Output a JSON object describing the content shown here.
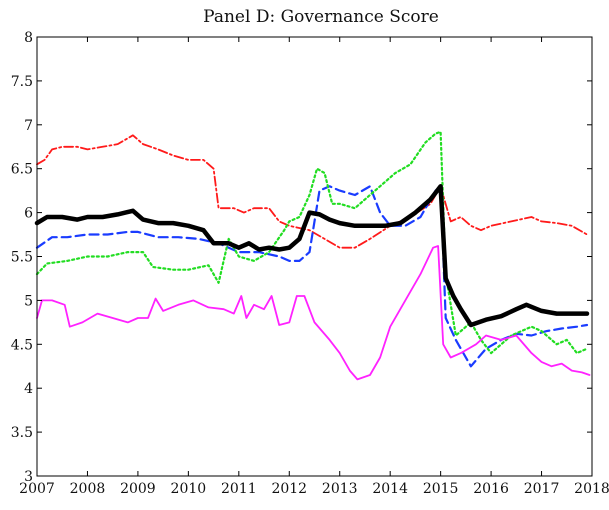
{
  "chart_data": {
    "type": "line",
    "title": "Panel D: Governance Score",
    "xlabel": "",
    "ylabel": "",
    "xlim": [
      2007,
      2018
    ],
    "ylim": [
      3,
      8
    ],
    "x_ticks": [
      "2007",
      "2008",
      "2009",
      "2010",
      "2011",
      "2012",
      "2013",
      "2014",
      "2015",
      "2016",
      "2017",
      "2018"
    ],
    "y_ticks": [
      "3",
      "3.5",
      "4",
      "4.5",
      "5",
      "5.5",
      "6",
      "6.5",
      "7",
      "7.5",
      "8"
    ],
    "grid": false,
    "legend": "none",
    "series": [
      {
        "color": "#ff1a1a",
        "style": "dashdot",
        "x": [
          2007.0,
          2007.15,
          2007.3,
          2007.5,
          2007.8,
          2008.0,
          2008.3,
          2008.6,
          2008.9,
          2009.1,
          2009.4,
          2009.7,
          2010.0,
          2010.3,
          2010.5,
          2010.6,
          2010.9,
          2011.1,
          2011.3,
          2011.6,
          2011.8,
          2012.0,
          2012.4,
          2012.7,
          2013.0,
          2013.3,
          2013.6,
          2014.0,
          2014.4,
          2014.8,
          2015.0,
          2015.2,
          2015.4,
          2015.6,
          2015.8,
          2016.0,
          2016.4,
          2016.8,
          2017.0,
          2017.3,
          2017.6,
          2017.9
        ],
        "y": [
          6.55,
          6.6,
          6.72,
          6.75,
          6.75,
          6.72,
          6.75,
          6.78,
          6.88,
          6.78,
          6.72,
          6.65,
          6.6,
          6.6,
          6.5,
          6.05,
          6.05,
          6.0,
          6.05,
          6.05,
          5.9,
          5.85,
          5.8,
          5.7,
          5.6,
          5.6,
          5.7,
          5.85,
          5.95,
          6.1,
          6.3,
          5.9,
          5.95,
          5.85,
          5.8,
          5.85,
          5.9,
          5.95,
          5.9,
          5.88,
          5.85,
          5.75
        ]
      },
      {
        "color": "#1a3cff",
        "style": "dashed",
        "x": [
          2007.0,
          2007.3,
          2007.6,
          2008.0,
          2008.4,
          2008.8,
          2009.0,
          2009.4,
          2009.8,
          2010.2,
          2010.6,
          2011.0,
          2011.4,
          2011.8,
          2012.0,
          2012.2,
          2012.4,
          2012.6,
          2012.8,
          2013.0,
          2013.3,
          2013.6,
          2013.8,
          2014.0,
          2014.3,
          2014.6,
          2014.9,
          2015.0,
          2015.1,
          2015.3,
          2015.6,
          2015.9,
          2016.2,
          2016.5,
          2016.8,
          2017.1,
          2017.4,
          2017.7,
          2017.9
        ],
        "y": [
          5.6,
          5.72,
          5.72,
          5.75,
          5.75,
          5.78,
          5.78,
          5.72,
          5.72,
          5.7,
          5.65,
          5.55,
          5.55,
          5.5,
          5.45,
          5.45,
          5.55,
          6.25,
          6.3,
          6.25,
          6.2,
          6.3,
          6.0,
          5.85,
          5.85,
          5.95,
          6.25,
          6.3,
          4.8,
          4.55,
          4.25,
          4.45,
          4.55,
          4.62,
          4.6,
          4.65,
          4.68,
          4.7,
          4.72
        ]
      },
      {
        "color": "#22dd22",
        "style": "dotted",
        "x": [
          2007.0,
          2007.2,
          2007.6,
          2008.0,
          2008.4,
          2008.8,
          2009.1,
          2009.3,
          2009.7,
          2010.0,
          2010.4,
          2010.6,
          2010.8,
          2011.0,
          2011.3,
          2011.6,
          2011.9,
          2012.0,
          2012.2,
          2012.4,
          2012.55,
          2012.7,
          2012.85,
          2013.0,
          2013.3,
          2013.6,
          2013.9,
          2014.1,
          2014.4,
          2014.7,
          2014.9,
          2015.0,
          2015.1,
          2015.3,
          2015.6,
          2015.8,
          2016.0,
          2016.4,
          2016.8,
          2017.0,
          2017.3,
          2017.5,
          2017.7,
          2017.9
        ],
        "y": [
          5.3,
          5.42,
          5.45,
          5.5,
          5.5,
          5.55,
          5.55,
          5.38,
          5.35,
          5.35,
          5.4,
          5.2,
          5.7,
          5.5,
          5.45,
          5.55,
          5.8,
          5.9,
          5.95,
          6.2,
          6.5,
          6.45,
          6.1,
          6.1,
          6.05,
          6.2,
          6.35,
          6.45,
          6.55,
          6.8,
          6.9,
          6.92,
          5.3,
          4.6,
          4.75,
          4.55,
          4.4,
          4.6,
          4.7,
          4.65,
          4.5,
          4.55,
          4.4,
          4.45
        ]
      },
      {
        "color": "#ff22ff",
        "style": "solid",
        "x": [
          2007.0,
          2007.1,
          2007.3,
          2007.55,
          2007.65,
          2007.9,
          2008.2,
          2008.5,
          2008.8,
          2009.0,
          2009.2,
          2009.35,
          2009.5,
          2009.8,
          2010.1,
          2010.4,
          2010.7,
          2010.9,
          2011.05,
          2011.15,
          2011.3,
          2011.5,
          2011.65,
          2011.8,
          2012.0,
          2012.15,
          2012.3,
          2012.5,
          2012.8,
          2013.0,
          2013.2,
          2013.35,
          2013.6,
          2013.8,
          2014.0,
          2014.3,
          2014.6,
          2014.85,
          2014.95,
          2015.05,
          2015.2,
          2015.4,
          2015.7,
          2015.9,
          2016.2,
          2016.5,
          2016.8,
          2017.0,
          2017.2,
          2017.4,
          2017.6,
          2017.8,
          2017.95
        ],
        "y": [
          4.8,
          5.0,
          5.0,
          4.95,
          4.7,
          4.75,
          4.85,
          4.8,
          4.75,
          4.8,
          4.8,
          5.02,
          4.88,
          4.95,
          5.0,
          4.92,
          4.9,
          4.85,
          5.05,
          4.8,
          4.95,
          4.9,
          5.05,
          4.72,
          4.75,
          5.05,
          5.05,
          4.75,
          4.55,
          4.4,
          4.2,
          4.1,
          4.15,
          4.35,
          4.7,
          5.0,
          5.3,
          5.6,
          5.62,
          4.5,
          4.35,
          4.4,
          4.5,
          4.6,
          4.55,
          4.6,
          4.4,
          4.3,
          4.25,
          4.28,
          4.2,
          4.18,
          4.15
        ]
      },
      {
        "color": "#000000",
        "style": "solid-thick",
        "x": [
          2007.0,
          2007.2,
          2007.5,
          2007.8,
          2008.0,
          2008.3,
          2008.6,
          2008.9,
          2009.1,
          2009.4,
          2009.7,
          2010.0,
          2010.3,
          2010.5,
          2010.8,
          2011.0,
          2011.2,
          2011.4,
          2011.6,
          2011.8,
          2012.0,
          2012.2,
          2012.4,
          2012.6,
          2012.8,
          2013.0,
          2013.3,
          2013.6,
          2013.9,
          2014.2,
          2014.5,
          2014.8,
          2015.0,
          2015.1,
          2015.25,
          2015.4,
          2015.6,
          2015.9,
          2016.2,
          2016.5,
          2016.7,
          2017.0,
          2017.3,
          2017.6,
          2017.9
        ],
        "y": [
          5.88,
          5.95,
          5.95,
          5.92,
          5.95,
          5.95,
          5.98,
          6.02,
          5.92,
          5.88,
          5.88,
          5.85,
          5.8,
          5.65,
          5.65,
          5.6,
          5.65,
          5.58,
          5.6,
          5.58,
          5.6,
          5.7,
          6.0,
          5.98,
          5.92,
          5.88,
          5.85,
          5.85,
          5.85,
          5.88,
          6.0,
          6.15,
          6.3,
          5.25,
          5.05,
          4.9,
          4.72,
          4.78,
          4.82,
          4.9,
          4.95,
          4.88,
          4.85,
          4.85,
          4.85
        ]
      }
    ]
  }
}
